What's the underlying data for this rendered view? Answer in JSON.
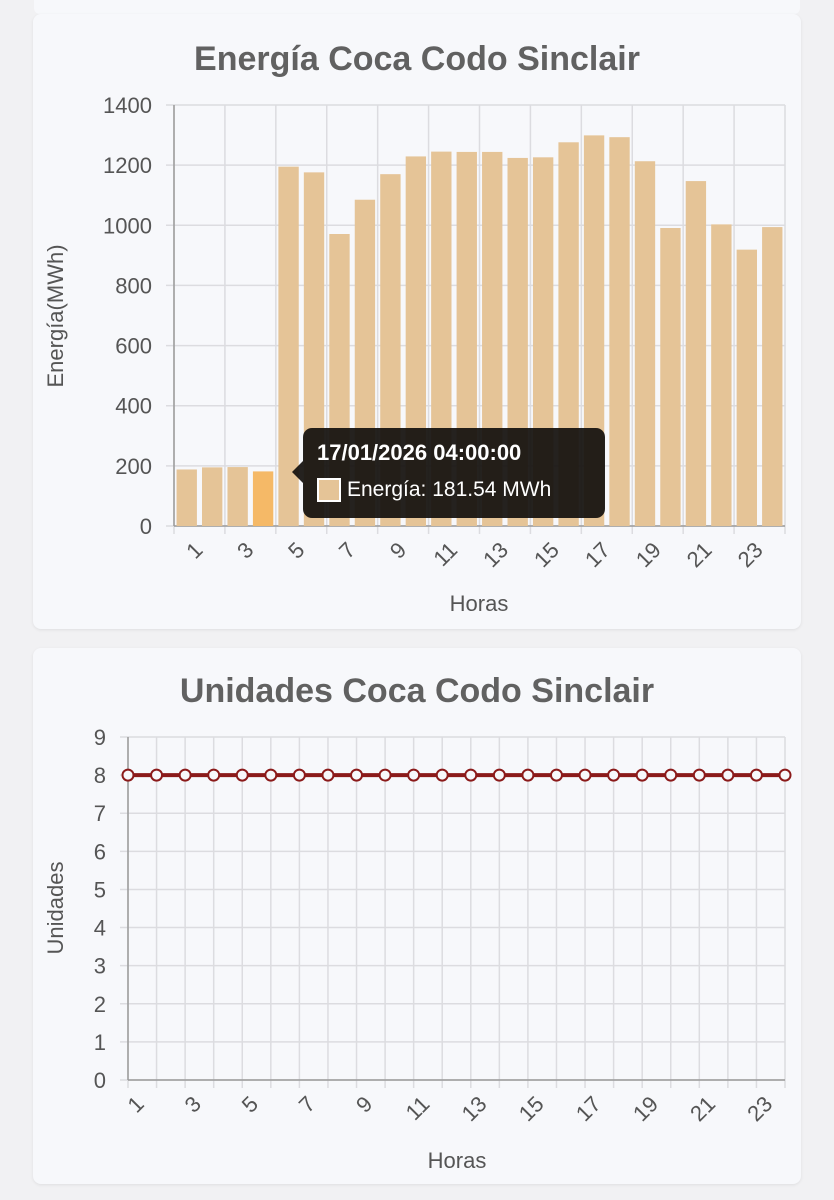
{
  "chart_data": [
    {
      "type": "bar",
      "title": "Energía Coca Codo Sinclair",
      "xlabel": "Horas",
      "ylabel": "Energía(MWh)",
      "categories": [
        "1",
        "2",
        "3",
        "4",
        "5",
        "6",
        "7",
        "8",
        "9",
        "10",
        "11",
        "12",
        "13",
        "14",
        "15",
        "16",
        "17",
        "18",
        "19",
        "20",
        "21",
        "22",
        "23",
        "24"
      ],
      "x_tick_labels": [
        "1",
        "3",
        "5",
        "7",
        "9",
        "11",
        "13",
        "15",
        "17",
        "19",
        "21",
        "23"
      ],
      "y_tick_labels": [
        "0",
        "200",
        "400",
        "600",
        "800",
        "1000",
        "1200",
        "1400"
      ],
      "values": [
        188,
        195,
        196,
        181.54,
        1195,
        1176,
        971,
        1085,
        1170,
        1229,
        1245,
        1244,
        1244,
        1224,
        1226,
        1276,
        1299,
        1293,
        1213,
        991,
        1147,
        1003,
        919,
        994
      ],
      "ylim": [
        0,
        1400
      ],
      "highlight_index": 3,
      "colors": {
        "bar": "#e5c497",
        "bar_highlight": "#f5b967"
      },
      "grid": true,
      "tooltip": {
        "title": "17/01/2026 04:00:00",
        "label": "Energía: 181.54 MWh"
      }
    },
    {
      "type": "line",
      "title": "Unidades Coca Codo Sinclair",
      "xlabel": "Horas",
      "ylabel": "Unidades",
      "categories": [
        "1",
        "2",
        "3",
        "4",
        "5",
        "6",
        "7",
        "8",
        "9",
        "10",
        "11",
        "12",
        "13",
        "14",
        "15",
        "16",
        "17",
        "18",
        "19",
        "20",
        "21",
        "22",
        "23",
        "24"
      ],
      "x_tick_labels": [
        "1",
        "3",
        "5",
        "7",
        "9",
        "11",
        "13",
        "15",
        "17",
        "19",
        "21",
        "23"
      ],
      "y_tick_labels": [
        "0",
        "1",
        "2",
        "3",
        "4",
        "5",
        "6",
        "7",
        "8",
        "9"
      ],
      "values": [
        8,
        8,
        8,
        8,
        8,
        8,
        8,
        8,
        8,
        8,
        8,
        8,
        8,
        8,
        8,
        8,
        8,
        8,
        8,
        8,
        8,
        8,
        8,
        8
      ],
      "ylim": [
        0,
        9
      ],
      "colors": {
        "line": "#8b1a1a",
        "point_fill": "#f7f8fb"
      },
      "grid": true
    }
  ]
}
